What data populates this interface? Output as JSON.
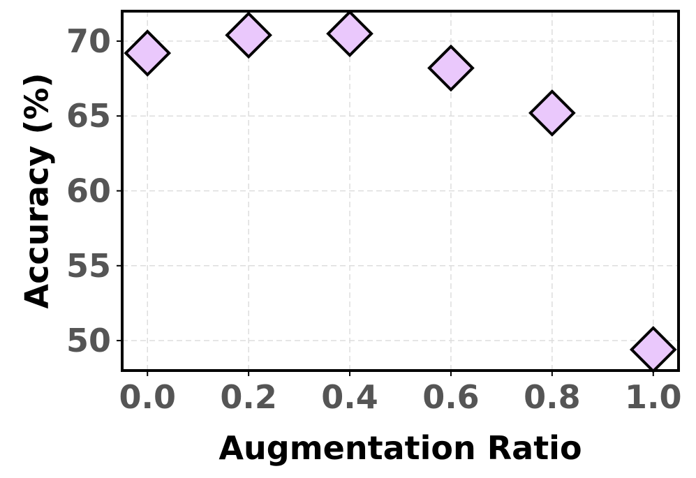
{
  "chart_data": {
    "type": "scatter",
    "xlabel": "Augmentation Ratio",
    "ylabel": "Accuracy (%)",
    "xlim": [
      -0.05,
      1.05
    ],
    "ylim": [
      48,
      72
    ],
    "xticks": [
      0.0,
      0.2,
      0.4,
      0.6,
      0.8,
      1.0
    ],
    "xtick_labels": [
      "0.0",
      "0.2",
      "0.4",
      "0.6",
      "0.8",
      "1.0"
    ],
    "yticks": [
      50,
      55,
      60,
      65,
      70
    ],
    "ytick_labels": [
      "50",
      "55",
      "60",
      "65",
      "70"
    ],
    "grid": true,
    "marker": "diamond",
    "series": [
      {
        "x": [
          0.0,
          0.2,
          0.4,
          0.6,
          0.8,
          1.0
        ],
        "y": [
          69.2,
          70.4,
          70.5,
          68.2,
          65.2,
          49.4
        ]
      }
    ],
    "colors": {
      "marker_fill": "#eac8fc",
      "marker_edge": "#000000",
      "tick_label": "#555555",
      "axis_title": "#000000",
      "grid": "#dddddd",
      "frame": "#000000"
    }
  }
}
